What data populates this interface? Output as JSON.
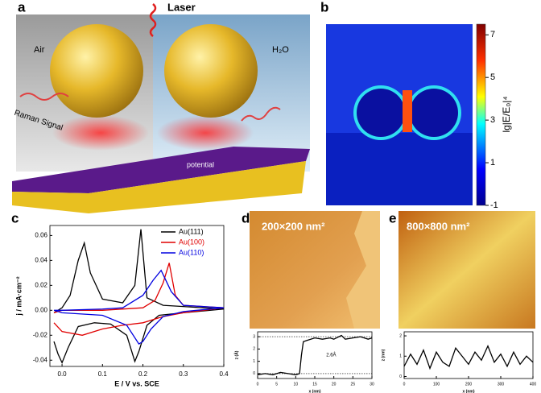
{
  "panel_a": {
    "letter": "a",
    "laser": "Laser",
    "left_medium": "Air",
    "right_medium": "H₂O",
    "raman": "Raman Signal",
    "potential": "potential"
  },
  "panel_b": {
    "letter": "b",
    "colorbar_label": "lg|E/E₀|⁴",
    "colorbar_lim": [
      -1,
      7.5
    ],
    "colorbar_ticks": [
      7,
      5,
      3,
      1,
      -1
    ]
  },
  "panel_d": {
    "letter": "d",
    "scale": "200×200 nm²"
  },
  "panel_e": {
    "letter": "e",
    "scale": "800×800 nm²"
  },
  "chart_data": [
    {
      "type": "line",
      "letter": "c",
      "xlabel": "E / V vs. SCE",
      "ylabel": "j / mA·cm⁻²",
      "xlim": [
        -0.03,
        0.4
      ],
      "ylim": [
        -0.045,
        0.068
      ],
      "xticks": [
        {
          "value": 0,
          "label": "0.0"
        },
        0.1,
        0.2,
        0.3,
        0.4
      ],
      "yticks": [
        -0.04,
        -0.02,
        {
          "value": 0,
          "label": "0.00"
        },
        0.02,
        0.04,
        0.06
      ],
      "legend": "upper right",
      "series": [
        {
          "name": "Au(111)",
          "color": "#000000",
          "x": [
            -0.02,
            0.0,
            0.02,
            0.04,
            0.055,
            0.07,
            0.1,
            0.15,
            0.18,
            0.195,
            0.21,
            0.25,
            0.3,
            0.4,
            0.3,
            0.24,
            0.21,
            0.19,
            0.18,
            0.16,
            0.12,
            0.08,
            0.04,
            0.015,
            0.0,
            -0.01,
            -0.02
          ],
          "values": [
            -0.002,
            0.002,
            0.012,
            0.04,
            0.054,
            0.03,
            0.009,
            0.006,
            0.02,
            0.065,
            0.01,
            0.004,
            0.003,
            0.001,
            -0.002,
            -0.004,
            -0.012,
            -0.033,
            -0.041,
            -0.02,
            -0.011,
            -0.01,
            -0.013,
            -0.03,
            -0.042,
            -0.035,
            -0.025
          ]
        },
        {
          "name": "Au(100)",
          "color": "#e00000",
          "x": [
            -0.02,
            0.0,
            0.1,
            0.2,
            0.23,
            0.25,
            0.265,
            0.28,
            0.3,
            0.4,
            0.3,
            0.25,
            0.2,
            0.15,
            0.1,
            0.05,
            0.0,
            -0.02
          ],
          "values": [
            -0.002,
            0.0,
            0.0,
            0.002,
            0.008,
            0.022,
            0.038,
            0.012,
            0.004,
            0.002,
            -0.002,
            -0.005,
            -0.01,
            -0.012,
            -0.015,
            -0.02,
            -0.017,
            -0.01
          ]
        },
        {
          "name": "Au(110)",
          "color": "#0000e0",
          "x": [
            -0.02,
            0.0,
            0.1,
            0.15,
            0.2,
            0.225,
            0.245,
            0.27,
            0.3,
            0.4,
            0.3,
            0.25,
            0.22,
            0.2,
            0.19,
            0.16,
            0.1,
            0.0,
            -0.02
          ],
          "values": [
            0.0,
            0.0,
            0.001,
            0.002,
            0.012,
            0.024,
            0.032,
            0.015,
            0.004,
            0.002,
            -0.001,
            -0.005,
            -0.015,
            -0.025,
            -0.027,
            -0.012,
            -0.004,
            -0.002,
            0.0
          ]
        }
      ]
    },
    {
      "type": "line",
      "xlabel": "x (nm)",
      "ylabel": "z (Å)",
      "annotation": "2.6Å",
      "xlim": [
        0,
        30
      ],
      "ylim": [
        -0.4,
        3.4
      ],
      "xticks": [
        0,
        5,
        10,
        15,
        20,
        25,
        30
      ],
      "yticks": [
        0,
        1,
        2,
        3
      ],
      "series": [
        {
          "color": "#000000",
          "x": [
            0,
            2,
            4,
            6,
            8,
            10,
            11,
            11.5,
            12,
            13,
            15,
            17,
            19,
            20,
            22,
            23,
            25,
            27,
            29,
            30
          ],
          "values": [
            -0.1,
            0.0,
            -0.1,
            0.1,
            0.0,
            -0.1,
            0.0,
            1.5,
            2.6,
            2.7,
            2.9,
            2.8,
            2.9,
            2.8,
            3.1,
            2.8,
            2.9,
            3.0,
            2.8,
            2.9
          ]
        }
      ]
    },
    {
      "type": "line",
      "xlabel": "x (nm)",
      "ylabel": "z (nm)",
      "xlim": [
        0,
        400
      ],
      "ylim": [
        -0.1,
        2.2
      ],
      "xticks": [
        0,
        100,
        200,
        300,
        400
      ],
      "yticks": [
        0,
        1,
        2
      ],
      "series": [
        {
          "color": "#000000",
          "x": [
            0,
            20,
            40,
            60,
            80,
            100,
            120,
            140,
            160,
            180,
            200,
            220,
            240,
            260,
            280,
            300,
            320,
            340,
            360,
            380,
            400
          ],
          "values": [
            0.5,
            1.1,
            0.6,
            1.3,
            0.4,
            1.2,
            0.7,
            0.5,
            1.4,
            1.0,
            0.6,
            1.2,
            0.8,
            1.5,
            0.7,
            1.1,
            0.5,
            1.2,
            0.6,
            1.0,
            0.7
          ]
        }
      ]
    }
  ]
}
